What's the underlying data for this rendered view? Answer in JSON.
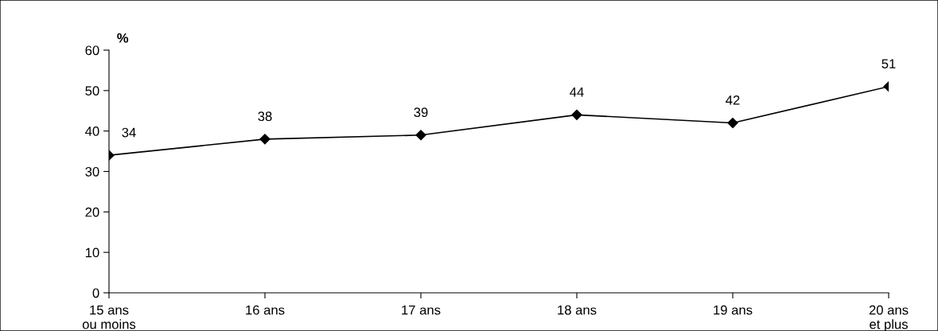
{
  "chart_data": {
    "type": "line",
    "ylabel": "%",
    "categories": [
      "15 ans\nou moins",
      "16 ans",
      "17 ans",
      "18 ans",
      "19 ans",
      "20 ans\net plus"
    ],
    "series": [
      {
        "color": "#000000",
        "values": [
          34,
          38,
          39,
          44,
          42,
          51
        ]
      }
    ],
    "ylim": [
      0,
      60
    ],
    "yticks": [
      0,
      10,
      20,
      30,
      40,
      50,
      60
    ],
    "grid": false,
    "legend": false,
    "marker": "diamond",
    "line_style": "solid",
    "data_labels": true
  }
}
